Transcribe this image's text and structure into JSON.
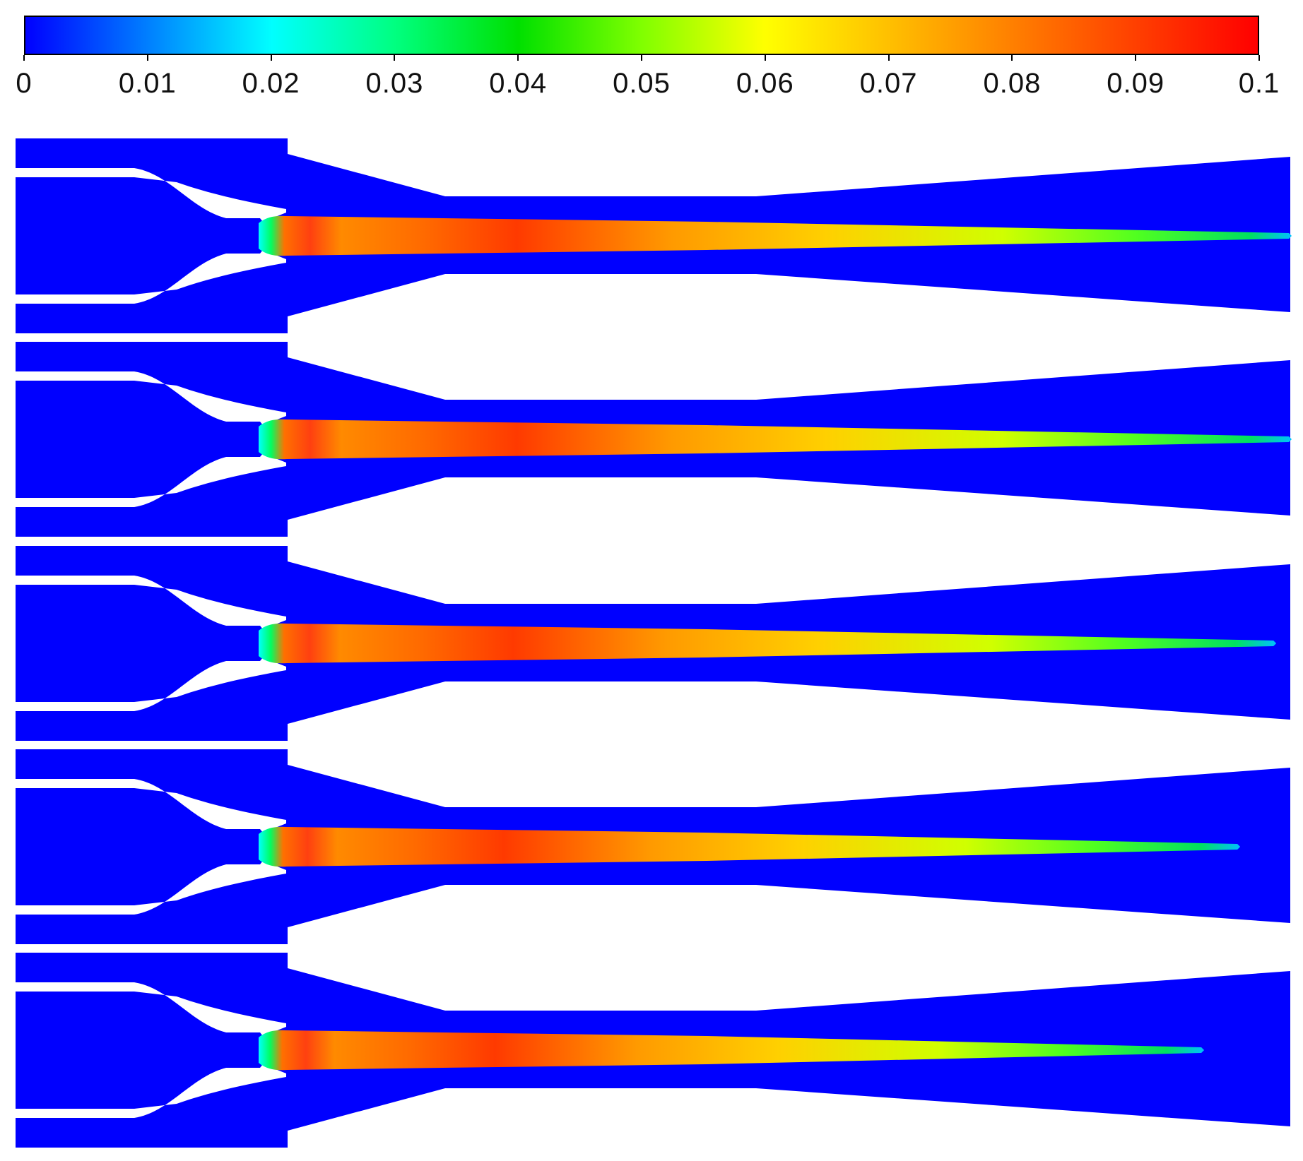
{
  "colorbar": {
    "min": 0,
    "max": 0.1,
    "colormap": "jet",
    "colors": [
      "#0000ff",
      "#0080ff",
      "#00ffff",
      "#00ff80",
      "#00e000",
      "#80ff00",
      "#ffff00",
      "#ffc000",
      "#ff8000",
      "#ff4000",
      "#ff0000"
    ],
    "ticks": [
      "0",
      "0.01",
      "0.02",
      "0.03",
      "0.04",
      "0.05",
      "0.06",
      "0.07",
      "0.08",
      "0.09",
      "0.1"
    ]
  },
  "panels": [
    {
      "jet_tip_reach": 1.0
    },
    {
      "jet_tip_reach": 1.0
    },
    {
      "jet_tip_reach": 0.985
    },
    {
      "jet_tip_reach": 0.95
    },
    {
      "jet_tip_reach": 0.915
    }
  ],
  "domain_color": "#0000ff"
}
